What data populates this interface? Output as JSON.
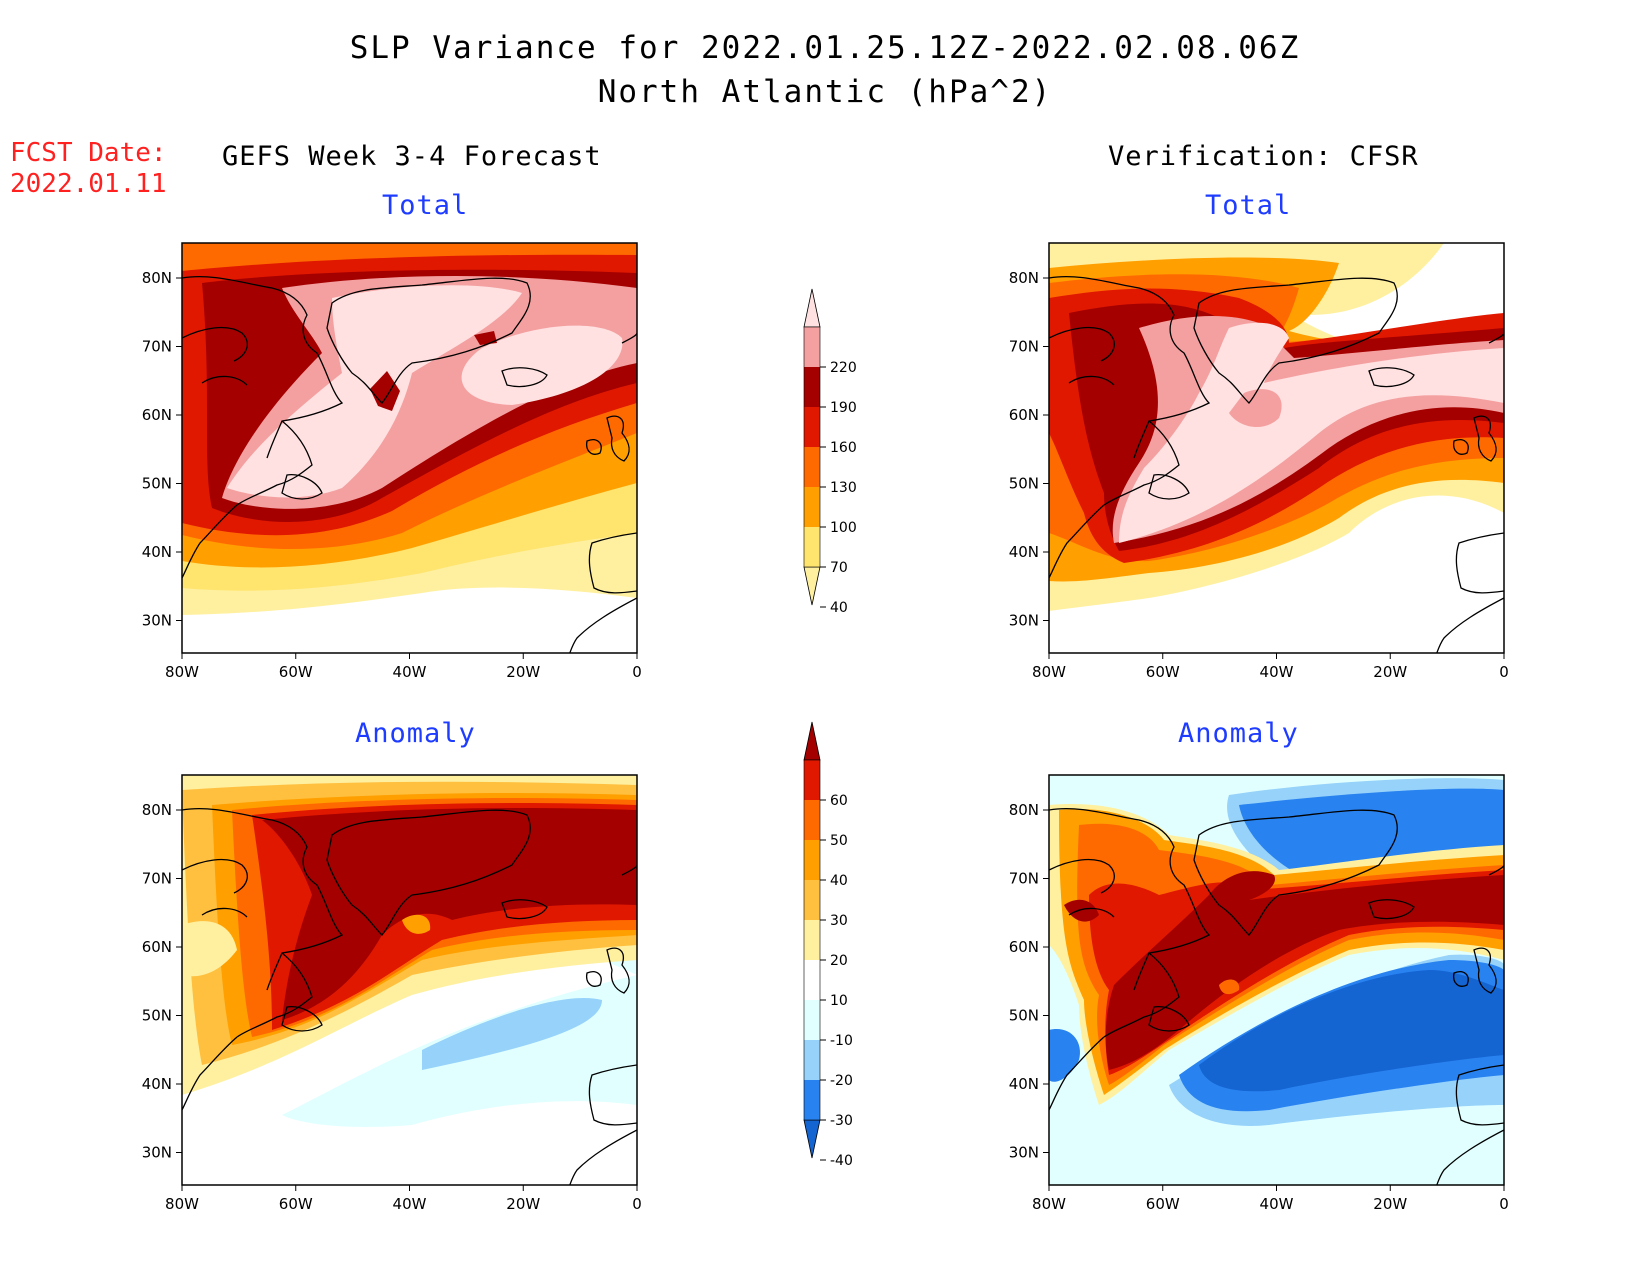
{
  "title": "SLP Variance for 2022.01.25.12Z-2022.02.08.06Z",
  "subtitle": "North Atlantic (hPa^2)",
  "fcst_date": {
    "label": "FCST Date:",
    "value": "2022.01.11"
  },
  "columns": {
    "left": "GEFS Week 3-4 Forecast",
    "right": "Verification: CFSR"
  },
  "panel_titles": {
    "top": "Total",
    "bottom": "Anomaly"
  },
  "axes": {
    "lon_ticks": [
      "80W",
      "60W",
      "40W",
      "20W",
      "0"
    ],
    "lat_ticks": [
      "80N",
      "70N",
      "60N",
      "50N",
      "40N",
      "30N"
    ]
  },
  "colorbars": {
    "total": {
      "levels": [
        "40",
        "70",
        "100",
        "130",
        "160",
        "190",
        "220"
      ],
      "colors": [
        "#fff0a0",
        "#ffe46e",
        "#ffa000",
        "#ff6a00",
        "#e11800",
        "#a50000",
        "#f4a0a0",
        "#ffe1e1"
      ]
    },
    "anomaly": {
      "levels": [
        "-40",
        "-30",
        "-20",
        "-10",
        "10",
        "20",
        "30",
        "40",
        "50",
        "60"
      ],
      "colors": [
        "#1464d2",
        "#2882f0",
        "#96d2fa",
        "#e1ffff",
        "#ffffff",
        "#fff0a0",
        "#ffc040",
        "#ffa000",
        "#ff6a00",
        "#e11800",
        "#a50000"
      ]
    }
  },
  "colors": {
    "title_blue": "#1e3cff",
    "fcst_red": "#ff2020"
  }
}
